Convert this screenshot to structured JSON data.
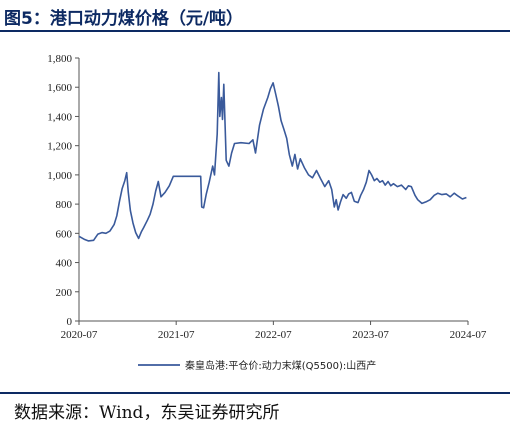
{
  "figure": {
    "title": "图5：港口动力煤价格（元/吨）",
    "source": "数据来源：Wind，东吴证券研究所"
  },
  "colors": {
    "line": "#3a5a9b",
    "rule": "#0d2a63",
    "axis": "#555555"
  },
  "chart_data": {
    "type": "line",
    "title": "",
    "xlabel": "",
    "ylabel": "",
    "x_ticks": [
      "2020-07",
      "2021-07",
      "2022-07",
      "2023-07",
      "2024-07"
    ],
    "y_ticks": [
      "0",
      "200",
      "400",
      "600",
      "800",
      "1,000",
      "1,200",
      "1,400",
      "1,600",
      "1,800"
    ],
    "ylim": [
      0,
      1800
    ],
    "xlim": [
      "2020-07-01",
      "2024-07-01"
    ],
    "grid": false,
    "legend": "bottom",
    "series": [
      {
        "name": "秦皇岛港:平仓价:动力末煤(Q5500):山西产",
        "points": [
          [
            "2020-07-01",
            580
          ],
          [
            "2020-07-20",
            560
          ],
          [
            "2020-08-05",
            548
          ],
          [
            "2020-08-25",
            552
          ],
          [
            "2020-09-10",
            595
          ],
          [
            "2020-09-25",
            605
          ],
          [
            "2020-10-10",
            600
          ],
          [
            "2020-10-25",
            615
          ],
          [
            "2020-11-10",
            660
          ],
          [
            "2020-11-20",
            720
          ],
          [
            "2020-11-30",
            820
          ],
          [
            "2020-12-10",
            905
          ],
          [
            "2020-12-20",
            960
          ],
          [
            "2020-12-27",
            1015
          ],
          [
            "2021-01-02",
            880
          ],
          [
            "2021-01-10",
            755
          ],
          [
            "2021-01-20",
            670
          ],
          [
            "2021-01-30",
            605
          ],
          [
            "2021-02-10",
            565
          ],
          [
            "2021-02-20",
            610
          ],
          [
            "2021-03-01",
            640
          ],
          [
            "2021-03-15",
            690
          ],
          [
            "2021-03-25",
            730
          ],
          [
            "2021-04-05",
            800
          ],
          [
            "2021-04-15",
            890
          ],
          [
            "2021-04-25",
            955
          ],
          [
            "2021-05-05",
            850
          ],
          [
            "2021-05-20",
            880
          ],
          [
            "2021-06-05",
            925
          ],
          [
            "2021-06-20",
            990
          ],
          [
            "2021-07-10",
            990
          ],
          [
            "2021-08-10",
            990
          ],
          [
            "2021-09-10",
            990
          ],
          [
            "2021-10-01",
            990
          ],
          [
            "2021-10-05",
            780
          ],
          [
            "2021-10-12",
            775
          ],
          [
            "2021-10-22",
            870
          ],
          [
            "2021-11-02",
            950
          ],
          [
            "2021-11-15",
            1060
          ],
          [
            "2021-11-22",
            1000
          ],
          [
            "2021-12-02",
            1280
          ],
          [
            "2021-12-08",
            1700
          ],
          [
            "2021-12-12",
            1400
          ],
          [
            "2021-12-18",
            1530
          ],
          [
            "2021-12-22",
            1380
          ],
          [
            "2021-12-27",
            1620
          ],
          [
            "2022-01-05",
            1100
          ],
          [
            "2022-01-15",
            1060
          ],
          [
            "2022-01-25",
            1150
          ],
          [
            "2022-02-05",
            1215
          ],
          [
            "2022-03-01",
            1220
          ],
          [
            "2022-04-01",
            1215
          ],
          [
            "2022-04-15",
            1240
          ],
          [
            "2022-04-25",
            1150
          ],
          [
            "2022-05-10",
            1340
          ],
          [
            "2022-05-25",
            1450
          ],
          [
            "2022-06-10",
            1530
          ],
          [
            "2022-06-20",
            1590
          ],
          [
            "2022-06-30",
            1630
          ],
          [
            "2022-07-10",
            1550
          ],
          [
            "2022-07-20",
            1470
          ],
          [
            "2022-07-30",
            1370
          ],
          [
            "2022-08-10",
            1310
          ],
          [
            "2022-08-20",
            1250
          ],
          [
            "2022-08-30",
            1140
          ],
          [
            "2022-09-10",
            1060
          ],
          [
            "2022-09-20",
            1140
          ],
          [
            "2022-09-30",
            1040
          ],
          [
            "2022-10-10",
            1110
          ],
          [
            "2022-10-25",
            1050
          ],
          [
            "2022-11-10",
            1000
          ],
          [
            "2022-11-25",
            980
          ],
          [
            "2022-12-10",
            1030
          ],
          [
            "2022-12-25",
            975
          ],
          [
            "2023-01-10",
            920
          ],
          [
            "2023-01-25",
            960
          ],
          [
            "2023-02-05",
            900
          ],
          [
            "2023-02-15",
            780
          ],
          [
            "2023-02-22",
            830
          ],
          [
            "2023-03-01",
            760
          ],
          [
            "2023-03-10",
            815
          ],
          [
            "2023-03-20",
            865
          ],
          [
            "2023-04-01",
            840
          ],
          [
            "2023-04-10",
            870
          ],
          [
            "2023-04-20",
            880
          ],
          [
            "2023-05-01",
            820
          ],
          [
            "2023-05-15",
            810
          ],
          [
            "2023-05-25",
            860
          ],
          [
            "2023-06-05",
            900
          ],
          [
            "2023-06-15",
            950
          ],
          [
            "2023-06-25",
            1030
          ],
          [
            "2023-07-05",
            1000
          ],
          [
            "2023-07-15",
            960
          ],
          [
            "2023-07-25",
            975
          ],
          [
            "2023-08-05",
            950
          ],
          [
            "2023-08-15",
            960
          ],
          [
            "2023-08-25",
            930
          ],
          [
            "2023-09-05",
            955
          ],
          [
            "2023-09-15",
            925
          ],
          [
            "2023-09-25",
            940
          ],
          [
            "2023-10-10",
            920
          ],
          [
            "2023-10-25",
            930
          ],
          [
            "2023-11-10",
            900
          ],
          [
            "2023-11-20",
            925
          ],
          [
            "2023-12-01",
            920
          ],
          [
            "2023-12-15",
            860
          ],
          [
            "2023-12-25",
            830
          ],
          [
            "2024-01-10",
            805
          ],
          [
            "2024-01-25",
            815
          ],
          [
            "2024-02-10",
            830
          ],
          [
            "2024-02-25",
            860
          ],
          [
            "2024-03-10",
            875
          ],
          [
            "2024-03-25",
            865
          ],
          [
            "2024-04-10",
            870
          ],
          [
            "2024-04-25",
            850
          ],
          [
            "2024-05-10",
            875
          ],
          [
            "2024-05-25",
            855
          ],
          [
            "2024-06-10",
            835
          ],
          [
            "2024-06-25",
            845
          ]
        ]
      }
    ]
  }
}
